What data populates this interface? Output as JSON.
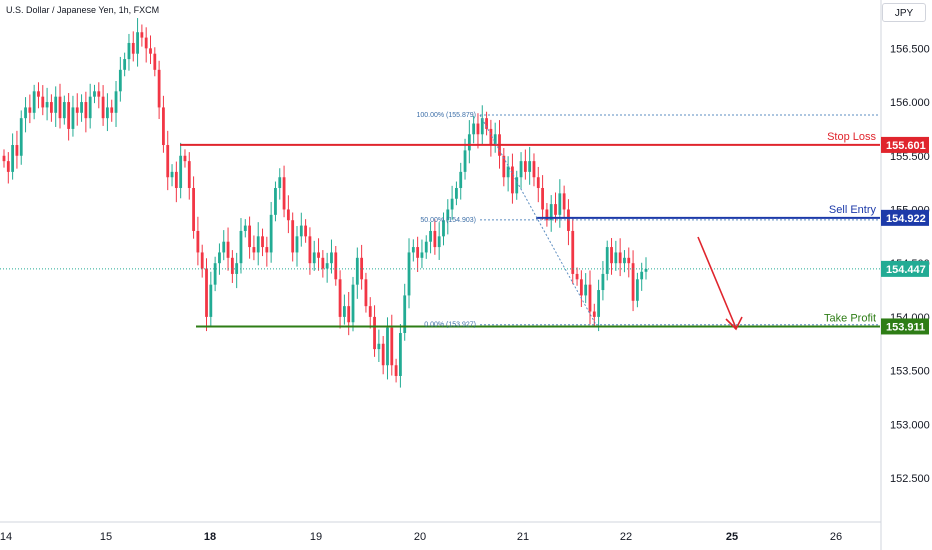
{
  "chart_data": {
    "type": "candlestick",
    "title": "U.S. Dollar / Japanese Yen, 1h, FXCM",
    "currency_label": "JPY",
    "ylim": [
      152.1,
      156.95
    ],
    "y_ticks": [
      {
        "value": 156.5,
        "label": "156.500"
      },
      {
        "value": 156.0,
        "label": "156.000"
      },
      {
        "value": 155.5,
        "label": "155.500"
      },
      {
        "value": 155.0,
        "label": "155.000"
      },
      {
        "value": 154.5,
        "label": "154.500"
      },
      {
        "value": 154.0,
        "label": "154.000"
      },
      {
        "value": 153.5,
        "label": "153.500"
      },
      {
        "value": 153.0,
        "label": "153.000"
      },
      {
        "value": 152.5,
        "label": "152.500"
      }
    ],
    "x_ticks": [
      "14",
      "15",
      "18",
      "19",
      "20",
      "21",
      "22",
      "25",
      "26"
    ],
    "x_ticks_bold": [
      "18",
      "25"
    ],
    "levels": [
      {
        "name": "Stop Loss",
        "value": 155.601,
        "label": "155.601",
        "color": "#e0252d"
      },
      {
        "name": "Sell Entry",
        "value": 154.922,
        "label": "154.922",
        "color": "#1c3aa9"
      },
      {
        "name": "Take Profit",
        "value": 153.911,
        "label": "153.911",
        "color": "#2e7d16"
      }
    ],
    "last_price": {
      "value": 154.447,
      "label": "154.447",
      "color": "#22ab94"
    },
    "fibonacci": [
      {
        "label": "100.00% (155.879)",
        "value": 155.879
      },
      {
        "label": "50.00% (154.903)",
        "value": 154.903
      },
      {
        "label": "0.00% (153.927)",
        "value": 153.927
      }
    ],
    "up_color": "#22ab94",
    "down_color": "#f23645",
    "ohlc_close_path": [
      155.45,
      155.35,
      155.6,
      155.5,
      155.85,
      155.95,
      155.9,
      156.1,
      156.05,
      155.95,
      156.0,
      155.9,
      156.05,
      155.85,
      156.0,
      155.75,
      155.95,
      155.9,
      156.0,
      155.85,
      156.05,
      156.1,
      156.05,
      155.85,
      155.95,
      155.9,
      156.1,
      156.3,
      156.4,
      156.55,
      156.45,
      156.65,
      156.6,
      156.5,
      156.45,
      156.3,
      155.95,
      155.6,
      155.3,
      155.35,
      155.2,
      155.5,
      155.45,
      155.2,
      154.8,
      154.6,
      154.45,
      154.0,
      154.3,
      154.5,
      154.6,
      154.7,
      154.55,
      154.4,
      154.5,
      154.8,
      154.85,
      154.65,
      154.6,
      154.75,
      154.65,
      154.6,
      154.95,
      155.2,
      155.3,
      155.0,
      154.9,
      154.6,
      154.75,
      154.85,
      154.75,
      154.5,
      154.6,
      154.55,
      154.45,
      154.5,
      154.6,
      154.35,
      154.0,
      154.1,
      153.95,
      154.3,
      154.55,
      154.35,
      154.1,
      154.0,
      153.7,
      153.75,
      153.55,
      153.9,
      153.55,
      153.45,
      153.85,
      154.2,
      154.6,
      154.65,
      154.55,
      154.6,
      154.7,
      154.8,
      154.65,
      154.75,
      154.9,
      155.0,
      155.1,
      155.2,
      155.35,
      155.55,
      155.7,
      155.8,
      155.7,
      155.85,
      155.75,
      155.6,
      155.7,
      155.5,
      155.3,
      155.4,
      155.15,
      155.3,
      155.45,
      155.35,
      155.45,
      155.3,
      155.2,
      155.0,
      154.9,
      155.05,
      154.95,
      155.15,
      155.0,
      154.8,
      154.4,
      154.35,
      154.2,
      154.3,
      154.05,
      154.0,
      154.25,
      154.4,
      154.65,
      154.5,
      154.6,
      154.5,
      154.55,
      154.5,
      154.15,
      154.35,
      154.42,
      154.447
    ]
  }
}
